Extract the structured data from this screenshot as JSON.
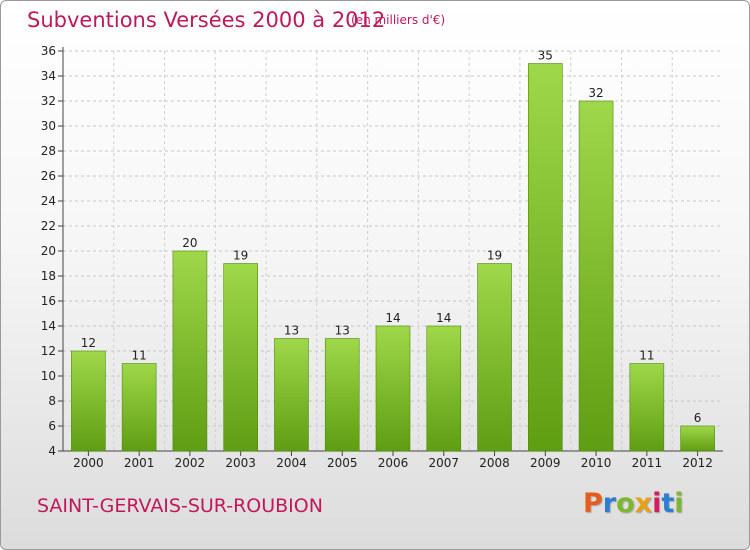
{
  "title": "Subventions Versées 2000 à 2012",
  "unit_note": "(en milliers d'€)",
  "commune": "SAINT-GERVAIS-SUR-ROUBION",
  "logo": {
    "text": "Proxiti",
    "letters": [
      {
        "char": "P",
        "color": "#e65c1a"
      },
      {
        "char": "r",
        "color": "#2e7dd1"
      },
      {
        "char": "o",
        "color": "#7cb82f"
      },
      {
        "char": "x",
        "color": "#e6a117"
      },
      {
        "char": "i",
        "color": "#d81b60"
      },
      {
        "char": "t",
        "color": "#2e7dd1"
      },
      {
        "char": "i",
        "color": "#7cb82f"
      }
    ]
  },
  "colors": {
    "bar_top": "#9fd84a",
    "bar_bottom": "#5f9d12",
    "bar_edge": "#4f8a0c",
    "title": "#c2185b"
  },
  "chart_data": {
    "type": "bar",
    "title": "Subventions Versées 2000 à 2012",
    "categories": [
      "2000",
      "2001",
      "2002",
      "2003",
      "2004",
      "2005",
      "2006",
      "2007",
      "2008",
      "2009",
      "2010",
      "2011",
      "2012"
    ],
    "values": [
      12,
      11,
      20,
      19,
      13,
      13,
      14,
      14,
      19,
      35,
      32,
      11,
      6
    ],
    "value_labels": [
      "12",
      "11",
      "20",
      "19",
      "13",
      "13",
      "14",
      "14",
      "19",
      "35",
      "32",
      "11",
      "6"
    ],
    "ylim": [
      4,
      36
    ],
    "yticks": [
      4,
      6,
      8,
      10,
      12,
      14,
      16,
      18,
      20,
      22,
      24,
      26,
      28,
      30,
      32,
      34,
      36
    ],
    "grid": true,
    "xlabel": "",
    "ylabel": ""
  }
}
